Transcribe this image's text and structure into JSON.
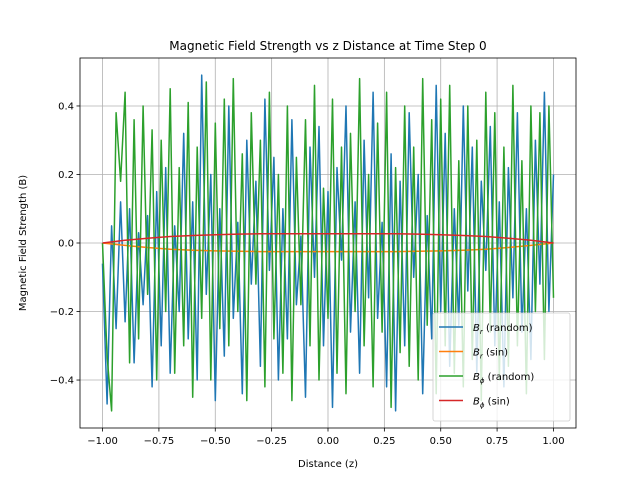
{
  "chart_data": {
    "type": "line",
    "title": "Magnetic Field Strength vs z Distance at Time Step 0",
    "xlabel": "Distance (z)",
    "ylabel": "Magnetic Field Strength (B)",
    "xlim": [
      -1.1,
      1.1
    ],
    "ylim": [
      -0.54,
      0.54
    ],
    "xticks": [
      -1.0,
      -0.75,
      -0.5,
      -0.25,
      0.0,
      0.25,
      0.5,
      0.75,
      1.0
    ],
    "xtick_labels": [
      "−1.00",
      "−0.75",
      "−0.50",
      "−0.25",
      "0.00",
      "0.25",
      "0.50",
      "0.75",
      "1.00"
    ],
    "yticks": [
      -0.4,
      -0.2,
      0.0,
      0.2,
      0.4
    ],
    "ytick_labels": [
      "−0.4",
      "−0.2",
      "0.0",
      "0.2",
      "0.4"
    ],
    "grid": true,
    "legend_position": "lower right",
    "series": [
      {
        "name": "B_r (random)",
        "legend_main": "B",
        "legend_sub": "r",
        "legend_suffix": " (random)",
        "color": "#1f77b4",
        "x": [
          -1.0,
          -0.98,
          -0.96,
          -0.94,
          -0.92,
          -0.9,
          -0.88,
          -0.86,
          -0.84,
          -0.82,
          -0.8,
          -0.78,
          -0.76,
          -0.74,
          -0.72,
          -0.7,
          -0.68,
          -0.66,
          -0.64,
          -0.62,
          -0.6,
          -0.58,
          -0.56,
          -0.54,
          -0.52,
          -0.5,
          -0.48,
          -0.46,
          -0.44,
          -0.42,
          -0.4,
          -0.38,
          -0.36,
          -0.34,
          -0.32,
          -0.3,
          -0.28,
          -0.26,
          -0.24,
          -0.22,
          -0.2,
          -0.18,
          -0.16,
          -0.14,
          -0.12,
          -0.1,
          -0.08,
          -0.06,
          -0.04,
          -0.02,
          0.0,
          0.02,
          0.04,
          0.06,
          0.08,
          0.1,
          0.12,
          0.14,
          0.16,
          0.18,
          0.2,
          0.22,
          0.24,
          0.26,
          0.28,
          0.3,
          0.32,
          0.34,
          0.36,
          0.38,
          0.4,
          0.42,
          0.44,
          0.46,
          0.48,
          0.5,
          0.52,
          0.54,
          0.56,
          0.58,
          0.6,
          0.62,
          0.64,
          0.66,
          0.68,
          0.7,
          0.72,
          0.74,
          0.76,
          0.78,
          0.8,
          0.82,
          0.84,
          0.86,
          0.88,
          0.9,
          0.92,
          0.94,
          0.96,
          0.98,
          1.0
        ],
        "y": [
          -0.06,
          -0.47,
          0.05,
          -0.25,
          0.12,
          -0.23,
          0.1,
          -0.35,
          0.03,
          -0.18,
          0.08,
          -0.42,
          0.15,
          -0.3,
          0.22,
          -0.38,
          0.05,
          -0.2,
          0.32,
          -0.28,
          0.12,
          -0.4,
          0.49,
          -0.15,
          0.2,
          -0.46,
          0.1,
          -0.33,
          0.4,
          -0.22,
          0.06,
          -0.44,
          0.3,
          -0.12,
          0.18,
          -0.36,
          0.42,
          -0.08,
          0.25,
          -0.4,
          0.1,
          -0.28,
          0.36,
          -0.18,
          0.02,
          -0.45,
          0.28,
          -0.1,
          0.34,
          -0.3,
          0.15,
          -0.48,
          0.22,
          -0.05,
          0.4,
          -0.26,
          0.12,
          -0.38,
          0.3,
          -0.16,
          0.44,
          -0.22,
          0.06,
          -0.42,
          0.26,
          -0.49,
          0.18,
          -0.3,
          0.38,
          -0.1,
          0.2,
          -0.44,
          0.08,
          -0.28,
          0.46,
          -0.2,
          0.32,
          -0.36,
          0.1,
          -0.24,
          0.4,
          -0.14,
          0.28,
          -0.38,
          0.18,
          -0.08,
          0.34,
          -0.3,
          0.12,
          -0.42,
          0.22,
          -0.16,
          0.38,
          -0.26,
          0.1,
          -0.34,
          0.3,
          -0.12,
          0.44,
          -0.2,
          0.2
        ]
      },
      {
        "name": "B_r (sin)",
        "legend_main": "B",
        "legend_sub": "r",
        "legend_suffix": " (sin)",
        "color": "#ff7f0e",
        "x": [
          -1.0,
          -0.9,
          -0.8,
          -0.7,
          -0.6,
          -0.5,
          -0.4,
          -0.3,
          -0.2,
          -0.1,
          0.0,
          0.1,
          0.2,
          0.3,
          0.4,
          0.5,
          0.6,
          0.7,
          0.8,
          0.9,
          1.0
        ],
        "y": [
          0.0,
          -0.007,
          -0.013,
          -0.018,
          -0.021,
          -0.023,
          -0.024,
          -0.025,
          -0.025,
          -0.025,
          -0.025,
          -0.025,
          -0.025,
          -0.025,
          -0.024,
          -0.023,
          -0.021,
          -0.018,
          -0.013,
          -0.007,
          0.0
        ]
      },
      {
        "name": "B_phi (random)",
        "legend_main": "B",
        "legend_sub": "ϕ",
        "legend_suffix": " (random)",
        "color": "#2ca02c",
        "x": [
          -1.0,
          -0.98,
          -0.96,
          -0.94,
          -0.92,
          -0.9,
          -0.88,
          -0.86,
          -0.84,
          -0.82,
          -0.8,
          -0.78,
          -0.76,
          -0.74,
          -0.72,
          -0.7,
          -0.68,
          -0.66,
          -0.64,
          -0.62,
          -0.6,
          -0.58,
          -0.56,
          -0.54,
          -0.52,
          -0.5,
          -0.48,
          -0.46,
          -0.44,
          -0.42,
          -0.4,
          -0.38,
          -0.36,
          -0.34,
          -0.32,
          -0.3,
          -0.28,
          -0.26,
          -0.24,
          -0.22,
          -0.2,
          -0.18,
          -0.16,
          -0.14,
          -0.12,
          -0.1,
          -0.08,
          -0.06,
          -0.04,
          -0.02,
          0.0,
          0.02,
          0.04,
          0.06,
          0.08,
          0.1,
          0.12,
          0.14,
          0.16,
          0.18,
          0.2,
          0.22,
          0.24,
          0.26,
          0.28,
          0.3,
          0.32,
          0.34,
          0.36,
          0.38,
          0.4,
          0.42,
          0.44,
          0.46,
          0.48,
          0.5,
          0.52,
          0.54,
          0.56,
          0.58,
          0.6,
          0.62,
          0.64,
          0.66,
          0.68,
          0.7,
          0.72,
          0.74,
          0.76,
          0.78,
          0.8,
          0.82,
          0.84,
          0.86,
          0.88,
          0.9,
          0.92,
          0.94,
          0.96,
          0.98,
          1.0
        ],
        "y": [
          0.0,
          -0.33,
          -0.49,
          0.38,
          0.18,
          0.44,
          -0.35,
          0.36,
          -0.28,
          0.4,
          -0.15,
          0.33,
          -0.4,
          0.3,
          -0.2,
          0.45,
          -0.38,
          0.22,
          -0.3,
          0.41,
          -0.45,
          0.28,
          -0.22,
          0.47,
          -0.4,
          0.35,
          -0.25,
          0.42,
          -0.3,
          0.48,
          -0.2,
          0.26,
          -0.46,
          0.38,
          -0.12,
          0.3,
          -0.42,
          0.44,
          -0.28,
          0.2,
          -0.38,
          0.4,
          -0.46,
          0.25,
          -0.18,
          0.36,
          -0.3,
          0.46,
          -0.4,
          0.16,
          -0.22,
          0.42,
          -0.38,
          0.28,
          -0.44,
          0.32,
          -0.2,
          0.48,
          -0.3,
          0.2,
          -0.42,
          0.35,
          -0.26,
          0.44,
          -0.48,
          0.22,
          -0.32,
          0.4,
          -0.36,
          0.28,
          -0.4,
          0.48,
          -0.24,
          0.36,
          -0.44,
          0.42,
          -0.3,
          0.46,
          -0.38,
          0.24,
          -0.42,
          0.4,
          -0.34,
          0.3,
          -0.46,
          0.44,
          -0.26,
          0.38,
          -0.4,
          0.28,
          -0.36,
          0.46,
          -0.3,
          0.24,
          -0.44,
          0.4,
          -0.2,
          0.38,
          -0.34,
          0.4,
          -0.16
        ]
      },
      {
        "name": "B_phi (sin)",
        "legend_main": "B",
        "legend_sub": "ϕ",
        "legend_suffix": " (sin)",
        "color": "#d62728",
        "x": [
          -1.0,
          -0.9,
          -0.8,
          -0.7,
          -0.6,
          -0.5,
          -0.4,
          -0.3,
          -0.2,
          -0.1,
          0.0,
          0.1,
          0.2,
          0.3,
          0.4,
          0.5,
          0.6,
          0.7,
          0.8,
          0.9,
          1.0
        ],
        "y": [
          0.0,
          0.008,
          0.014,
          0.019,
          0.022,
          0.024,
          0.026,
          0.027,
          0.027,
          0.027,
          0.027,
          0.027,
          0.027,
          0.027,
          0.026,
          0.024,
          0.022,
          0.019,
          0.014,
          0.008,
          0.0
        ]
      }
    ]
  }
}
